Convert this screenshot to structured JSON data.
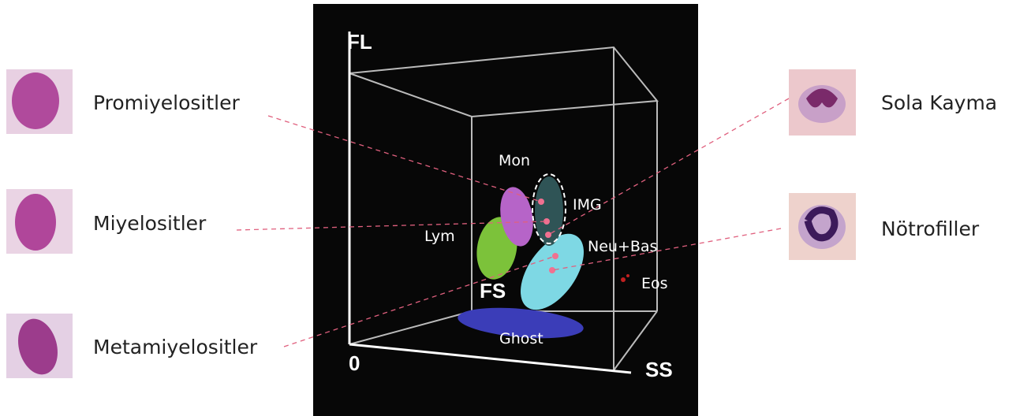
{
  "axes": {
    "fl": "FL",
    "origin": "0",
    "ss": "SS",
    "fs": "FS"
  },
  "clusters": {
    "mon": "Mon",
    "img": "IMG",
    "lym": "Lym",
    "neu_bas": "Neu+Bas",
    "eos": "Eos",
    "ghost": "Ghost"
  },
  "left_labels": [
    "Promiyelositler",
    "Miyelositler",
    "Metamiyelositler"
  ],
  "right_labels": [
    "Sola Kayma",
    "Nötrofiller"
  ]
}
